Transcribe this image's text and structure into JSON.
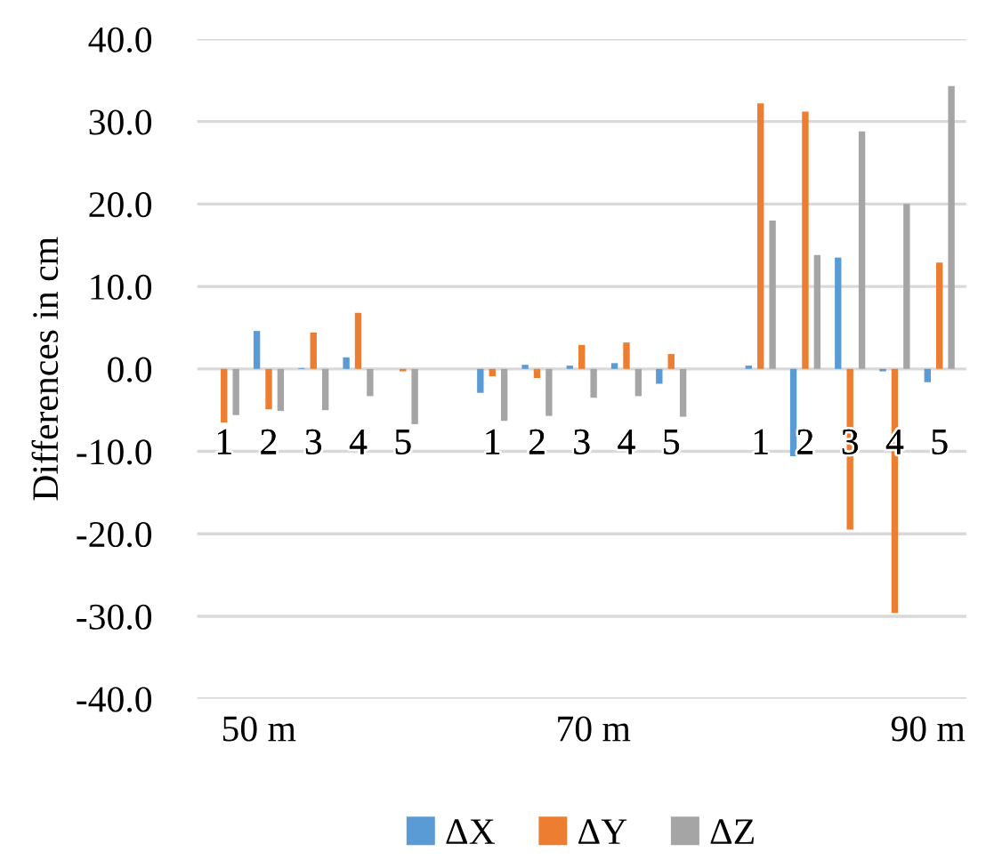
{
  "chart_data": {
    "type": "bar",
    "ylabel": "Differences in cm",
    "categories": [
      "1",
      "2",
      "3",
      "4",
      "5",
      null,
      "1",
      "2",
      "3",
      "4",
      "5",
      null,
      "1",
      "2",
      "3",
      "4",
      "5"
    ],
    "series": [
      {
        "name": "ΔX",
        "color": "#5b9bd5",
        "values": [
          0.0,
          4.6,
          0.1,
          1.4,
          0.0,
          null,
          -2.9,
          0.5,
          0.4,
          0.7,
          -1.8,
          null,
          0.4,
          -10.6,
          13.5,
          -0.3,
          -1.6
        ]
      },
      {
        "name": "ΔY",
        "color": "#ed7d31",
        "values": [
          -6.5,
          -4.9,
          4.4,
          6.8,
          -0.3,
          null,
          -0.9,
          -1.1,
          2.9,
          3.2,
          1.8,
          null,
          32.2,
          31.2,
          -19.5,
          -29.6,
          12.9
        ]
      },
      {
        "name": "ΔZ",
        "color": "#a5a5a5",
        "values": [
          -5.6,
          -5.1,
          -5.0,
          -3.3,
          -6.7,
          null,
          -6.3,
          -5.7,
          -3.5,
          -3.3,
          -5.8,
          null,
          18.0,
          13.8,
          28.8,
          20.0,
          34.3
        ]
      }
    ],
    "ylim": [
      -40,
      40
    ],
    "yticks": [
      {
        "value": -40,
        "label": "-40.0"
      },
      {
        "value": -30,
        "label": "-30.0"
      },
      {
        "value": -20,
        "label": "-20.0"
      },
      {
        "value": -10,
        "label": "-10.0"
      },
      {
        "value": 0,
        "label": "0.0"
      },
      {
        "value": 10,
        "label": "10.0"
      },
      {
        "value": 20,
        "label": "20.0"
      },
      {
        "value": 30,
        "label": "30.0"
      },
      {
        "value": 40,
        "label": "40.0"
      }
    ],
    "annotations": [
      "50 m",
      "70 m",
      "90 m"
    ],
    "grid": "y",
    "legend": "bottom"
  }
}
